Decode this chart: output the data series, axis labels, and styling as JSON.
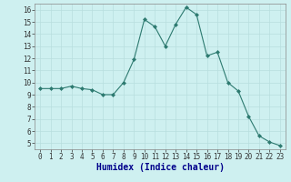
{
  "x": [
    0,
    1,
    2,
    3,
    4,
    5,
    6,
    7,
    8,
    9,
    10,
    11,
    12,
    13,
    14,
    15,
    16,
    17,
    18,
    19,
    20,
    21,
    22,
    23
  ],
  "y": [
    9.5,
    9.5,
    9.5,
    9.7,
    9.5,
    9.4,
    9.0,
    9.0,
    10.0,
    11.9,
    15.2,
    14.6,
    13.0,
    14.8,
    16.2,
    15.6,
    12.2,
    12.5,
    10.0,
    9.3,
    7.2,
    5.6,
    5.1,
    4.8
  ],
  "line_color": "#2d7a70",
  "marker": "D",
  "marker_size": 2.0,
  "bg_color": "#cef0f0",
  "grid_color": "#b8dede",
  "xlabel": "Humidex (Indice chaleur)",
  "xlim": [
    -0.5,
    23.5
  ],
  "ylim": [
    4.5,
    16.5
  ],
  "yticks": [
    5,
    6,
    7,
    8,
    9,
    10,
    11,
    12,
    13,
    14,
    15,
    16
  ],
  "xticks": [
    0,
    1,
    2,
    3,
    4,
    5,
    6,
    7,
    8,
    9,
    10,
    11,
    12,
    13,
    14,
    15,
    16,
    17,
    18,
    19,
    20,
    21,
    22,
    23
  ],
  "tick_fontsize": 5.5,
  "xlabel_fontsize": 7,
  "xlabel_color": "#00008b"
}
